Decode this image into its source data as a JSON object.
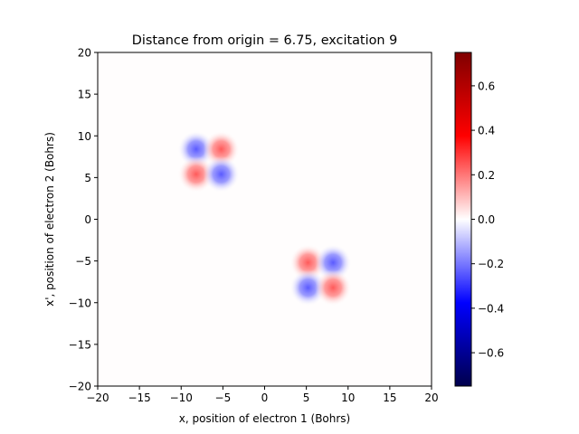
{
  "chart_data": {
    "type": "heatmap",
    "title": "Distance from origin = 6.75, excitation 9",
    "xlabel": "x, position of electron 1 (Bohrs)",
    "ylabel": "x', position of electron 2 (Bohrs)",
    "xlim": [
      -20,
      20
    ],
    "ylim": [
      -20,
      20
    ],
    "xticks": [
      -20,
      -15,
      -10,
      -5,
      0,
      5,
      10,
      15,
      20
    ],
    "yticks": [
      -20,
      -15,
      -10,
      -5,
      0,
      5,
      10,
      15,
      20
    ],
    "xtick_labels": [
      "−20",
      "−15",
      "−10",
      "−5",
      "0",
      "5",
      "10",
      "15",
      "20"
    ],
    "ytick_labels": [
      "−20",
      "−15",
      "−10",
      "−5",
      "0",
      "5",
      "10",
      "15",
      "20"
    ],
    "colormap": "seismic",
    "vmin": -0.75,
    "vmax": 0.75,
    "colorbar_ticks": [
      0.6,
      0.4,
      0.2,
      0.0,
      -0.2,
      -0.4,
      -0.6
    ],
    "colorbar_tick_labels": [
      "0.6",
      "0.4",
      "0.2",
      "0.0",
      "−0.2",
      "−0.4",
      "−0.6"
    ],
    "blobs": [
      {
        "x": -8.2,
        "y": 8.4,
        "value": -0.32
      },
      {
        "x": -5.2,
        "y": 8.4,
        "value": 0.32
      },
      {
        "x": -8.2,
        "y": 5.4,
        "value": 0.32
      },
      {
        "x": -5.2,
        "y": 5.4,
        "value": -0.32
      },
      {
        "x": 5.2,
        "y": -5.2,
        "value": 0.32
      },
      {
        "x": 8.2,
        "y": -5.2,
        "value": -0.32
      },
      {
        "x": 5.2,
        "y": -8.2,
        "value": -0.32
      },
      {
        "x": 8.2,
        "y": -8.2,
        "value": 0.32
      }
    ]
  }
}
